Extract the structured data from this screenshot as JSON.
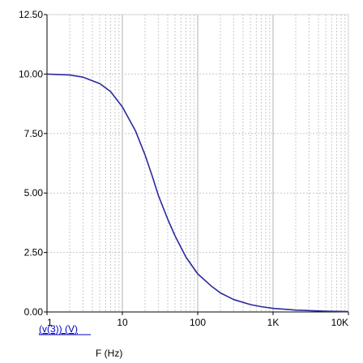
{
  "chart_data": {
    "type": "line",
    "x_scale": "log",
    "xlim": [
      1,
      10000
    ],
    "ylim": [
      0,
      12.5
    ],
    "x_ticks": [
      "1",
      "10",
      "100",
      "1K",
      "10K"
    ],
    "y_ticks": [
      "0.00",
      "2.50",
      "5.00",
      "7.50",
      "10.00",
      "12.50"
    ],
    "xlabel": "F (Hz)",
    "grid": true,
    "series": [
      {
        "name": "(v(3)) (V)",
        "color": "#2a2aa0",
        "x": [
          1,
          2,
          3,
          5,
          7,
          10,
          15,
          20,
          25,
          30,
          40,
          50,
          70,
          100,
          150,
          200,
          300,
          500,
          700,
          1000,
          2000,
          5000,
          10000
        ],
        "y": [
          10.0,
          9.96,
          9.87,
          9.6,
          9.26,
          8.62,
          7.6,
          6.6,
          5.7,
          4.9,
          3.9,
          3.2,
          2.3,
          1.6,
          1.1,
          0.8,
          0.52,
          0.31,
          0.22,
          0.15,
          0.08,
          0.03,
          0.015
        ]
      }
    ],
    "colors": {
      "grid": "#c8c8c8",
      "axis": "#000000",
      "series": "#2a2aa0"
    }
  }
}
